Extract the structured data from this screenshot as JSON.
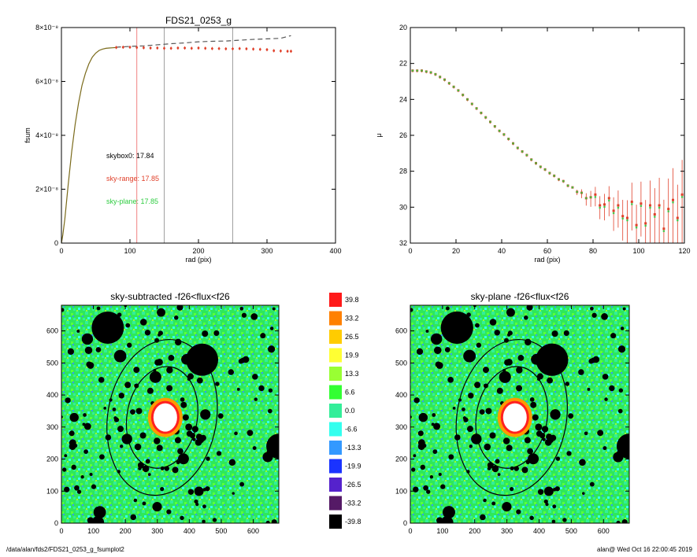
{
  "footer": {
    "left": "/data/alan/fds2/FDS21_0253_g_fsumplot2",
    "right": "alan@  Wed Oct 16 22:00:45 2019"
  },
  "colors": {
    "sky_range": "#e0402a",
    "sky_plane": "#2ecc40",
    "skybox": "#000000",
    "model": "#7a6a1a",
    "vline_red": "#f08080",
    "vline_grey": "#a0a0a0"
  },
  "chart_data": [
    {
      "id": "fsum",
      "type": "line",
      "title": "FDS21_0253_g",
      "xlabel": "rad (pix)",
      "ylabel": "fsum",
      "xlim": [
        0,
        400
      ],
      "ylim": [
        0,
        8e-08
      ],
      "xticks": [
        0,
        100,
        200,
        300,
        400
      ],
      "yticks": [
        {
          "value": 0,
          "label": "0"
        },
        {
          "value": 2e-08,
          "label": "2×10⁻⁸"
        },
        {
          "value": 4e-08,
          "label": "4×10⁻⁸"
        },
        {
          "value": 6e-08,
          "label": "6×10⁻⁸"
        },
        {
          "value": 8e-08,
          "label": "8×10⁻⁸"
        }
      ],
      "annotations": [
        {
          "text": "skybox0: 17.84",
          "color": "#000000"
        },
        {
          "text": "sky-range: 17.85",
          "color": "#e0402a"
        },
        {
          "text": "sky-plane: 17.85",
          "color": "#2ecc40"
        }
      ],
      "vlines": [
        {
          "x": 110,
          "color": "#f08080"
        },
        {
          "x": 150,
          "color": "#a0a0a0"
        },
        {
          "x": 250,
          "color": "#a0a0a0"
        }
      ],
      "series": [
        {
          "style": "solid",
          "color": "#7a6a1a",
          "x": [
            0,
            2,
            5,
            10,
            15,
            20,
            25,
            30,
            35,
            40,
            45,
            50,
            55,
            60,
            65,
            70,
            75,
            80
          ],
          "y": [
            0,
            3e-09,
            9e-09,
            2.2e-08,
            3.4e-08,
            4.4e-08,
            5.2e-08,
            5.85e-08,
            6.3e-08,
            6.65e-08,
            6.9e-08,
            7.05e-08,
            7.15e-08,
            7.2e-08,
            7.23e-08,
            7.24e-08,
            7.25e-08,
            7.26e-08
          ]
        },
        {
          "style": "dashed",
          "color": "#555555",
          "x": [
            80,
            100,
            120,
            140,
            160,
            180,
            200,
            220,
            240,
            260,
            280,
            300,
            320,
            335
          ],
          "y": [
            7.27e-08,
            7.3e-08,
            7.32e-08,
            7.36e-08,
            7.4e-08,
            7.43e-08,
            7.47e-08,
            7.49e-08,
            7.5e-08,
            7.53e-08,
            7.56e-08,
            7.58e-08,
            7.6e-08,
            7.7e-08
          ]
        },
        {
          "style": "points",
          "color": "#e0402a",
          "x": [
            80,
            90,
            100,
            110,
            120,
            130,
            140,
            150,
            160,
            170,
            180,
            190,
            200,
            210,
            220,
            230,
            240,
            250,
            260,
            270,
            280,
            290,
            300,
            310,
            320,
            330,
            335
          ],
          "y": [
            7.26e-08,
            7.27e-08,
            7.27e-08,
            7.26e-08,
            7.25e-08,
            7.24e-08,
            7.24e-08,
            7.23e-08,
            7.23e-08,
            7.24e-08,
            7.24e-08,
            7.23e-08,
            7.24e-08,
            7.23e-08,
            7.22e-08,
            7.22e-08,
            7.21e-08,
            7.21e-08,
            7.22e-08,
            7.21e-08,
            7.2e-08,
            7.19e-08,
            7.18e-08,
            7.14e-08,
            7.13e-08,
            7.12e-08,
            7.12e-08
          ]
        }
      ]
    },
    {
      "id": "mu",
      "type": "scatter",
      "title": "",
      "xlabel": "rad (pix)",
      "ylabel": "μ",
      "xlim": [
        0,
        120
      ],
      "ylim": [
        32,
        20
      ],
      "xticks": [
        0,
        20,
        40,
        60,
        80,
        100,
        120
      ],
      "yticks": [
        20,
        22,
        24,
        26,
        28,
        30,
        32
      ],
      "series": [
        {
          "style": "points",
          "color": "#e0402a",
          "x": [
            1,
            3,
            5,
            7,
            9,
            11,
            13,
            15,
            17,
            19,
            21,
            23,
            25,
            27,
            29,
            31,
            33,
            35,
            37,
            39,
            41,
            43,
            45,
            47,
            49,
            51,
            53,
            55,
            57,
            59,
            61,
            63,
            65,
            67,
            69,
            71,
            73,
            75,
            77,
            79,
            81,
            83,
            85,
            87,
            89,
            91,
            93,
            95,
            97,
            99,
            101,
            103,
            105,
            107,
            109,
            111,
            113,
            115,
            117,
            119
          ],
          "y": [
            22.4,
            22.4,
            22.4,
            22.45,
            22.5,
            22.6,
            22.75,
            22.9,
            23.1,
            23.3,
            23.5,
            23.75,
            24.0,
            24.25,
            24.5,
            24.75,
            25.0,
            25.25,
            25.5,
            25.75,
            25.95,
            26.2,
            26.45,
            26.7,
            26.9,
            27.1,
            27.35,
            27.55,
            27.75,
            27.9,
            28.1,
            28.25,
            28.45,
            28.55,
            28.8,
            28.9,
            29.15,
            29.2,
            29.5,
            29.45,
            29.3,
            29.9,
            29.85,
            29.5,
            30.2,
            29.9,
            30.5,
            30.6,
            29.7,
            31.0,
            29.8,
            30.9,
            29.9,
            30.4,
            29.9,
            31.2,
            30.1,
            29.6,
            30.6,
            29.3
          ]
        },
        {
          "style": "points",
          "color": "#2ecc40",
          "x": [
            1,
            3,
            5,
            7,
            9,
            11,
            13,
            15,
            17,
            19,
            21,
            23,
            25,
            27,
            29,
            31,
            33,
            35,
            37,
            39,
            41,
            43,
            45,
            47,
            49,
            51,
            53,
            55,
            57,
            59,
            61,
            63,
            65,
            67,
            69,
            71,
            73,
            75,
            77,
            79,
            81,
            83,
            85,
            87,
            89,
            91,
            93,
            95,
            97,
            99,
            101,
            103,
            105,
            107,
            109,
            111,
            113,
            115,
            117,
            119
          ],
          "y": [
            22.4,
            22.4,
            22.4,
            22.45,
            22.5,
            22.6,
            22.75,
            22.9,
            23.1,
            23.3,
            23.5,
            23.75,
            24.0,
            24.25,
            24.5,
            24.75,
            25.0,
            25.25,
            25.5,
            25.75,
            25.95,
            26.2,
            26.45,
            26.7,
            26.9,
            27.1,
            27.35,
            27.55,
            27.75,
            27.9,
            28.1,
            28.25,
            28.45,
            28.55,
            28.8,
            28.9,
            29.15,
            29.2,
            29.5,
            29.45,
            29.3,
            29.9,
            29.85,
            29.5,
            30.2,
            29.9,
            30.5,
            30.6,
            29.7,
            31.0,
            29.8,
            30.9,
            29.9,
            30.4,
            29.9,
            31.2,
            30.1,
            29.6,
            30.6,
            29.3
          ]
        }
      ]
    },
    {
      "id": "sky-subtracted-map",
      "type": "heatmap",
      "title": "sky-subtracted -f26<flux<f26",
      "xlim": [
        0,
        680
      ],
      "ylim": [
        0,
        680
      ],
      "xticks": [
        0,
        100,
        200,
        300,
        400,
        500,
        600
      ],
      "yticks": [
        0,
        100,
        200,
        300,
        400,
        500,
        600
      ],
      "center": [
        315,
        330
      ],
      "ellipses": [
        {
          "rx": 110,
          "ry": 160,
          "angle": 10
        },
        {
          "rx": 170,
          "ry": 245,
          "angle": 10
        }
      ]
    },
    {
      "id": "sky-plane-map",
      "type": "heatmap",
      "title": "sky-plane -f26<flux<f26",
      "xlim": [
        0,
        680
      ],
      "ylim": [
        0,
        680
      ],
      "xticks": [
        0,
        100,
        200,
        300,
        400,
        500,
        600
      ],
      "yticks": [
        0,
        100,
        200,
        300,
        400,
        500,
        600
      ],
      "center": [
        315,
        330
      ],
      "ellipses": [
        {
          "rx": 110,
          "ry": 160,
          "angle": 10
        },
        {
          "rx": 170,
          "ry": 245,
          "angle": 10
        }
      ]
    },
    {
      "id": "colorbar",
      "type": "table",
      "levels": [
        {
          "label": "39.8",
          "color": "#ff1a1a"
        },
        {
          "label": "33.2",
          "color": "#ff8000"
        },
        {
          "label": "26.5",
          "color": "#ffcc00"
        },
        {
          "label": "19.9",
          "color": "#ffff33"
        },
        {
          "label": "13.3",
          "color": "#99ff33"
        },
        {
          "label": "6.6",
          "color": "#33ff33"
        },
        {
          "label": "0.0",
          "color": "#33ee99"
        },
        {
          "label": "-6.6",
          "color": "#33ffee"
        },
        {
          "label": "-13.3",
          "color": "#3399ff"
        },
        {
          "label": "-19.9",
          "color": "#1a33ff"
        },
        {
          "label": "-26.5",
          "color": "#5522cc"
        },
        {
          "label": "-33.2",
          "color": "#551a66"
        },
        {
          "label": "-39.8",
          "color": "#000000"
        }
      ]
    }
  ]
}
